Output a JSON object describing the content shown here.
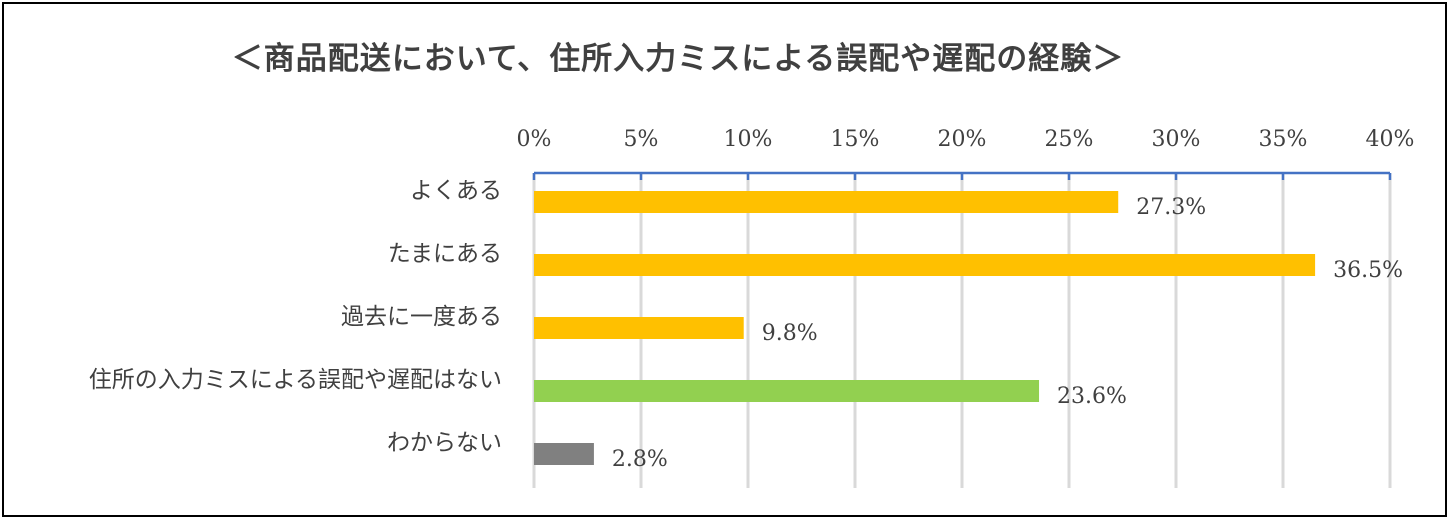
{
  "chart_data": {
    "type": "bar",
    "orientation": "horizontal",
    "title": "＜商品配送において、住所入力ミスによる誤配や遅配の経験＞",
    "categories": [
      "よくある",
      "たまにある",
      "過去に一度ある",
      "住所の入力ミスによる誤配や遅配はない",
      "わからない"
    ],
    "values": [
      27.3,
      36.5,
      9.8,
      23.6,
      2.8
    ],
    "data_labels": [
      "27.3%",
      "36.5%",
      "9.8%",
      "23.6%",
      "2.8%"
    ],
    "bar_colors": [
      "#FFC000",
      "#FFC000",
      "#FFC000",
      "#92D050",
      "#808080"
    ],
    "xlim": [
      0,
      40
    ],
    "x_ticks": [
      0,
      5,
      10,
      15,
      20,
      25,
      30,
      35,
      40
    ],
    "x_tick_labels": [
      "0%",
      "5%",
      "10%",
      "15%",
      "20%",
      "25%",
      "30%",
      "35%",
      "40%"
    ],
    "x_axis_position": "top",
    "axis_color": "#4472C4",
    "grid": true,
    "grid_color": "#D9D9D9",
    "legend": "none",
    "xlabel": "",
    "ylabel": ""
  }
}
